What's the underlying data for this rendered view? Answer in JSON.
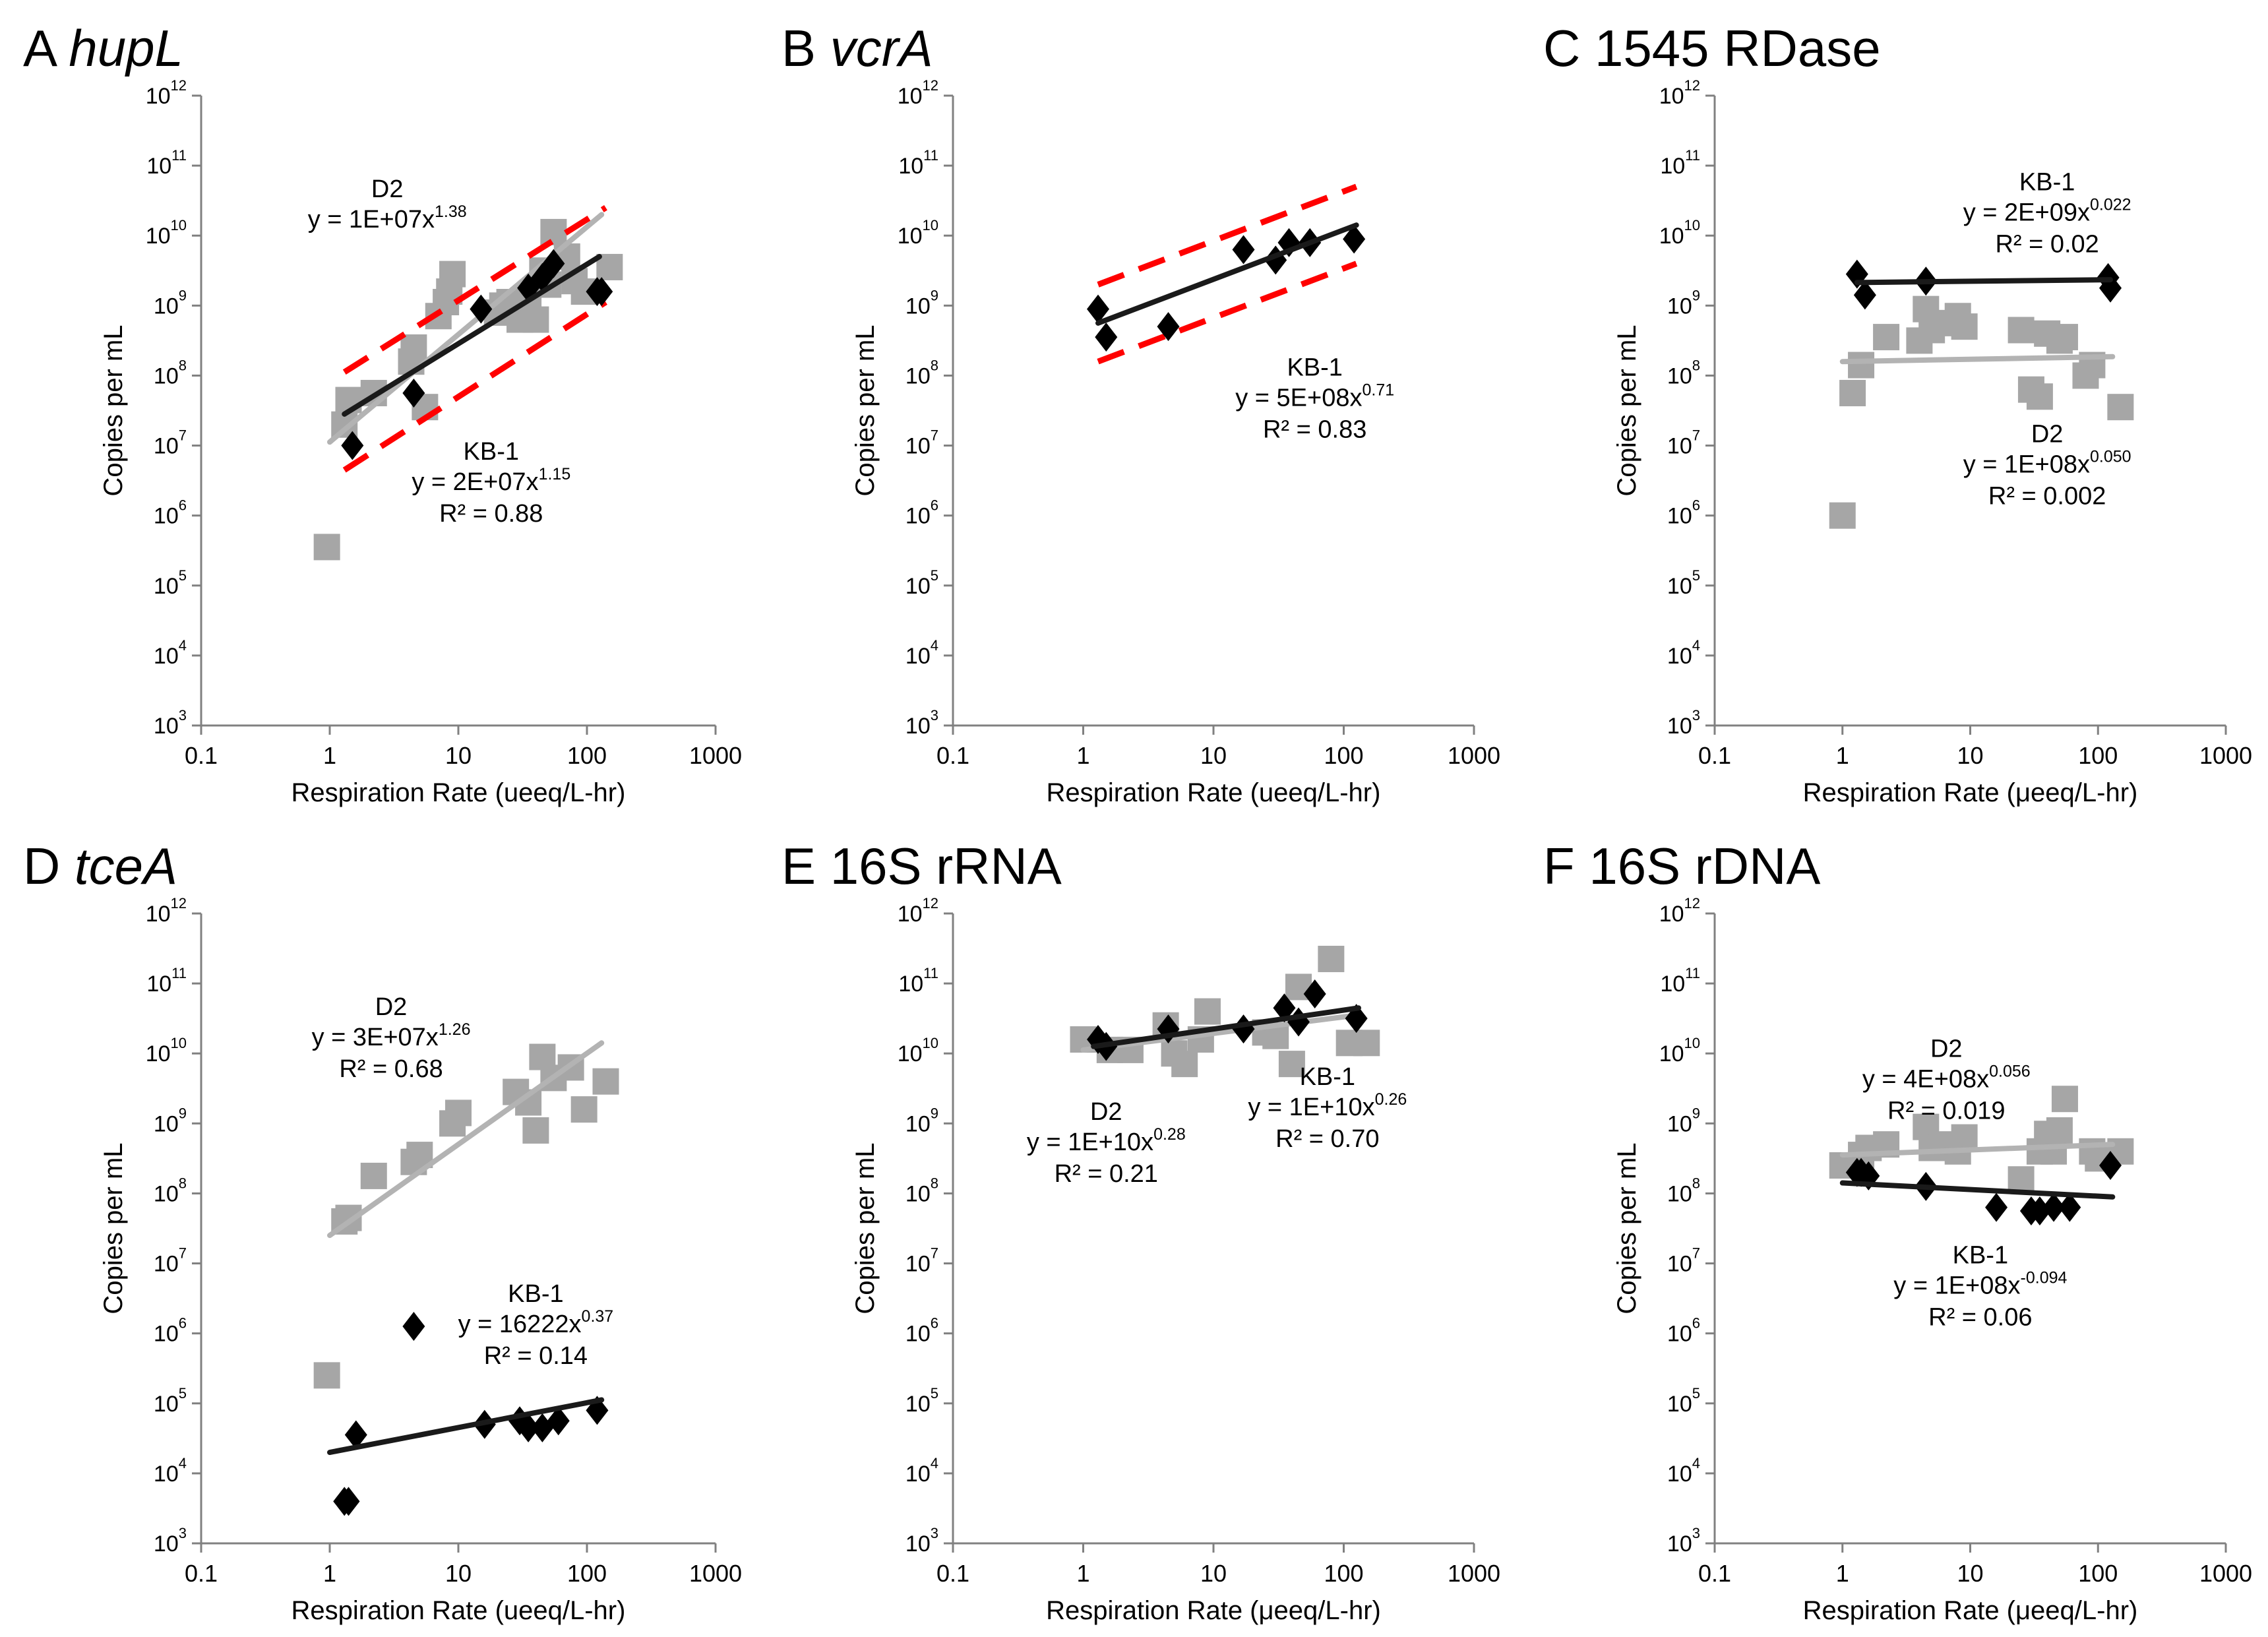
{
  "figure": {
    "colors": {
      "kb1": "#000000",
      "d2": "#a6a6a6",
      "ci": "#ff0000",
      "axis": "#808080"
    }
  },
  "chart_data": [
    {
      "id": "A",
      "letter": "A",
      "gene": "hupL",
      "gene_italic": true,
      "type": "scatter",
      "xscale": "log",
      "yscale": "log",
      "xlabel": "Respiration Rate (ueeq/L-hr)",
      "ylabel": "Copies per mL",
      "xticks": [
        "0.1",
        "1",
        "10",
        "100",
        "1000"
      ],
      "yticks": [
        3,
        4,
        5,
        6,
        7,
        8,
        9,
        10,
        11,
        12
      ],
      "xlim": [
        0.1,
        1000
      ],
      "ylim_exp": [
        3,
        12
      ],
      "series": [
        {
          "name": "D2",
          "color": "gray",
          "marker": "square",
          "x": [
            0.95,
            1.3,
            1.4,
            2.2,
            4.3,
            4.5,
            5.5,
            7,
            8,
            8.5,
            9,
            20,
            22,
            25,
            30,
            35,
            40,
            45,
            50,
            55,
            70,
            80,
            95,
            150
          ],
          "y_exp": [
            5.55,
            7.3,
            7.65,
            7.75,
            8.2,
            8.4,
            7.55,
            8.85,
            9.05,
            9.2,
            9.45,
            8.9,
            9.0,
            9.05,
            8.8,
            9.0,
            8.8,
            9.5,
            9.3,
            10.05,
            9.7,
            9.35,
            9.2,
            9.55
          ],
          "fit": {
            "x0": 1,
            "x1": 130,
            "y0_exp": 7.05,
            "y1_exp": 10.3
          }
        },
        {
          "name": "KB-1",
          "color": "black",
          "marker": "diamond",
          "x": [
            1.5,
            4.5,
            15,
            35,
            45,
            55,
            120,
            130
          ],
          "y_exp": [
            7.0,
            7.75,
            8.95,
            9.25,
            9.4,
            9.6,
            9.2,
            9.2
          ],
          "fit": {
            "x0": 1.3,
            "x1": 125,
            "y0_exp": 7.45,
            "y1_exp": 9.7
          },
          "ci": {
            "upper": {
              "x0": 1.3,
              "x1": 140,
              "y0_exp": 8.05,
              "y1_exp": 10.4
            },
            "lower": {
              "x0": 1.3,
              "x1": 140,
              "y0_exp": 6.65,
              "y1_exp": 9.05
            }
          }
        }
      ],
      "annotations": [
        {
          "lines": [
            "D2",
            "y = 1E+07x",
            "1.38"
          ],
          "x": 2.8,
          "y_exp": 10.55,
          "super": true,
          "r2": ""
        },
        {
          "lines": [
            "KB-1",
            "y = 2E+07x",
            "1.15"
          ],
          "x": 18,
          "y_exp": 6.8,
          "super": true,
          "r2": "R² = 0.88"
        }
      ]
    },
    {
      "id": "B",
      "letter": "B",
      "gene": "vcrA",
      "gene_italic": true,
      "type": "scatter",
      "xscale": "log",
      "yscale": "log",
      "xlabel": "Respiration Rate (ueeq/L-hr)",
      "ylabel": "Copies per mL",
      "xticks": [
        "0.1",
        "1",
        "10",
        "100",
        "1000"
      ],
      "yticks": [
        3,
        4,
        5,
        6,
        7,
        8,
        9,
        10,
        11,
        12
      ],
      "xlim": [
        0.1,
        1000
      ],
      "ylim_exp": [
        3,
        12
      ],
      "series": [
        {
          "name": "KB-1",
          "color": "black",
          "marker": "diamond",
          "x": [
            1.3,
            1.5,
            4.5,
            17,
            30,
            38,
            55,
            120
          ],
          "y_exp": [
            8.95,
            8.55,
            8.7,
            9.8,
            9.65,
            9.9,
            9.9,
            9.95
          ],
          "fit": {
            "x0": 1.3,
            "x1": 125,
            "y0_exp": 8.75,
            "y1_exp": 10.15
          },
          "ci": {
            "upper": {
              "x0": 1.3,
              "x1": 125,
              "y0_exp": 9.3,
              "y1_exp": 10.7
            },
            "lower": {
              "x0": 1.3,
              "x1": 125,
              "y0_exp": 8.2,
              "y1_exp": 9.6
            }
          }
        }
      ],
      "annotations": [
        {
          "lines": [
            "KB-1",
            "y = 5E+08x",
            "0.71"
          ],
          "x": 60,
          "y_exp": 8.0,
          "super": true,
          "r2": "R² = 0.83"
        }
      ]
    },
    {
      "id": "C",
      "letter": "C",
      "gene": "1545 RDase",
      "gene_italic": false,
      "type": "scatter",
      "xscale": "log",
      "yscale": "log",
      "xlabel": "Respiration Rate (μeeq/L-hr)",
      "ylabel": "Copies per mL",
      "xticks": [
        "0.1",
        "1",
        "10",
        "100",
        "1000"
      ],
      "yticks": [
        3,
        4,
        5,
        6,
        7,
        8,
        9,
        10,
        11,
        12
      ],
      "xlim": [
        0.1,
        1000
      ],
      "ylim_exp": [
        3,
        12
      ],
      "series": [
        {
          "name": "D2",
          "color": "gray",
          "marker": "square",
          "x": [
            1,
            1.2,
            1.4,
            2.2,
            4,
            4.5,
            5,
            6,
            8,
            9,
            25,
            30,
            35,
            40,
            50,
            55,
            80,
            90,
            150
          ],
          "y_exp": [
            6.0,
            7.75,
            8.15,
            8.55,
            8.5,
            8.95,
            8.65,
            8.75,
            8.85,
            8.7,
            8.65,
            7.8,
            7.7,
            8.6,
            8.5,
            8.55,
            8.0,
            8.15,
            7.55
          ],
          "fit": {
            "x0": 1,
            "x1": 130,
            "y0_exp": 8.2,
            "y1_exp": 8.27
          }
        },
        {
          "name": "KB-1",
          "color": "black",
          "marker": "diamond",
          "x": [
            1.3,
            1.5,
            4.5,
            120,
            125
          ],
          "y_exp": [
            9.45,
            9.15,
            9.35,
            9.4,
            9.25
          ],
          "fit": {
            "x0": 1.3,
            "x1": 125,
            "y0_exp": 9.33,
            "y1_exp": 9.37
          }
        }
      ],
      "annotations": [
        {
          "lines": [
            "KB-1",
            "y = 2E+09x",
            "0.022"
          ],
          "x": 40,
          "y_exp": 10.65,
          "super": true,
          "r2": "R² = 0.02"
        },
        {
          "lines": [
            "D2",
            "y = 1E+08x",
            "0.050"
          ],
          "x": 40,
          "y_exp": 7.05,
          "super": true,
          "r2": "R² = 0.002"
        }
      ]
    },
    {
      "id": "D",
      "letter": "D",
      "gene": "tceA",
      "gene_italic": true,
      "type": "scatter",
      "xscale": "log",
      "yscale": "log",
      "xlabel": "Respiration Rate (ueeq/L-hr)",
      "ylabel": "Copies per mL",
      "xticks": [
        "0.1",
        "1",
        "10",
        "100",
        "1000"
      ],
      "yticks": [
        3,
        4,
        5,
        6,
        7,
        8,
        9,
        10,
        11,
        12
      ],
      "xlim": [
        0.1,
        1000
      ],
      "ylim_exp": [
        3,
        12
      ],
      "series": [
        {
          "name": "D2",
          "color": "gray",
          "marker": "square",
          "x": [
            0.95,
            1.3,
            1.4,
            2.2,
            4.5,
            5.0,
            9,
            10,
            28,
            35,
            40,
            45,
            55,
            75,
            95,
            140
          ],
          "y_exp": [
            5.4,
            7.6,
            7.65,
            8.25,
            8.45,
            8.55,
            9.0,
            9.15,
            9.45,
            9.3,
            8.9,
            9.95,
            9.65,
            9.8,
            9.2,
            9.6
          ],
          "fit": {
            "x0": 1,
            "x1": 130,
            "y0_exp": 7.4,
            "y1_exp": 10.15
          }
        },
        {
          "name": "KB-1",
          "color": "black",
          "marker": "diamond",
          "x": [
            1.3,
            1.4,
            1.6,
            4.5,
            16,
            30,
            35,
            45,
            60,
            120
          ],
          "y_exp": [
            3.6,
            3.6,
            4.55,
            6.1,
            4.7,
            4.75,
            4.65,
            4.65,
            4.75,
            4.9
          ],
          "fit": {
            "x0": 1.0,
            "x1": 130,
            "y0_exp": 4.3,
            "y1_exp": 5.05
          }
        }
      ],
      "annotations": [
        {
          "lines": [
            "D2",
            "y = 3E+07x",
            "1.26"
          ],
          "x": 3.0,
          "y_exp": 10.55,
          "super": true,
          "r2": "R² = 0.68"
        },
        {
          "lines": [
            "KB-1",
            "y = 16222x",
            "0.37"
          ],
          "x": 40,
          "y_exp": 6.45,
          "super": true,
          "r2": "R² = 0.14"
        }
      ]
    },
    {
      "id": "E",
      "letter": "E",
      "gene": "16S rRNA",
      "gene_italic": false,
      "type": "scatter",
      "xscale": "log",
      "yscale": "log",
      "xlabel": "Respiration Rate (μeeq/L-hr)",
      "ylabel": "Copies per mL",
      "xticks": [
        "0.1",
        "1",
        "10",
        "100",
        "1000"
      ],
      "yticks": [
        3,
        4,
        5,
        6,
        7,
        8,
        9,
        10,
        11,
        12
      ],
      "xlim": [
        0.1,
        1000
      ],
      "ylim_exp": [
        3,
        12
      ],
      "series": [
        {
          "name": "D2",
          "color": "gray",
          "marker": "square",
          "x": [
            1,
            1.6,
            2.3,
            4.3,
            5,
            6,
            8,
            9,
            25,
            30,
            40,
            45,
            80,
            110,
            150
          ],
          "y_exp": [
            10.2,
            10.05,
            10.05,
            10.4,
            10.0,
            9.85,
            10.2,
            10.6,
            10.3,
            10.25,
            9.85,
            10.95,
            11.35,
            10.15,
            10.15
          ],
          "fit": {
            "x0": 1,
            "x1": 130,
            "y0_exp": 10.05,
            "y1_exp": 10.55
          }
        },
        {
          "name": "KB-1",
          "color": "black",
          "marker": "diamond",
          "x": [
            1.3,
            1.5,
            4.5,
            17,
            35,
            45,
            60,
            125
          ],
          "y_exp": [
            10.2,
            10.1,
            10.35,
            10.35,
            10.65,
            10.45,
            10.85,
            10.5
          ],
          "fit": {
            "x0": 1.2,
            "x1": 130,
            "y0_exp": 10.1,
            "y1_exp": 10.65
          }
        }
      ],
      "annotations": [
        {
          "lines": [
            "D2",
            "y = 1E+10x",
            "0.28"
          ],
          "x": 1.5,
          "y_exp": 9.05,
          "super": true,
          "r2": "R² = 0.21"
        },
        {
          "lines": [
            "KB-1",
            "y = 1E+10x",
            "0.26"
          ],
          "x": 75,
          "y_exp": 9.55,
          "super": true,
          "r2": "R² = 0.70"
        }
      ]
    },
    {
      "id": "F",
      "letter": "F",
      "gene": "16S rDNA",
      "gene_italic": false,
      "type": "scatter",
      "xscale": "log",
      "yscale": "log",
      "xlabel": "Respiration Rate (μeeq/L-hr)",
      "ylabel": "Copies per mL",
      "xticks": [
        "0.1",
        "1",
        "10",
        "100",
        "1000"
      ],
      "yticks": [
        3,
        4,
        5,
        6,
        7,
        8,
        9,
        10,
        11,
        12
      ],
      "xlim": [
        0.1,
        1000
      ],
      "ylim_exp": [
        3,
        12
      ],
      "series": [
        {
          "name": "D2",
          "color": "gray",
          "marker": "square",
          "x": [
            1,
            1.4,
            1.6,
            2.2,
            4.5,
            5,
            6,
            8,
            9,
            25,
            35,
            40,
            45,
            50,
            55,
            90,
            100,
            150
          ],
          "y_exp": [
            8.4,
            8.55,
            8.65,
            8.7,
            8.95,
            8.65,
            8.7,
            8.6,
            8.8,
            8.2,
            8.6,
            8.85,
            8.6,
            8.9,
            9.35,
            8.6,
            8.5,
            8.6
          ],
          "fit": {
            "x0": 1,
            "x1": 130,
            "y0_exp": 8.55,
            "y1_exp": 8.7
          }
        },
        {
          "name": "KB-1",
          "color": "black",
          "marker": "diamond",
          "x": [
            1.3,
            1.4,
            1.6,
            4.5,
            16,
            30,
            35,
            45,
            60,
            125
          ],
          "y_exp": [
            8.3,
            8.3,
            8.25,
            8.1,
            7.8,
            7.75,
            7.75,
            7.8,
            7.8,
            8.4
          ],
          "fit": {
            "x0": 1.0,
            "x1": 130,
            "y0_exp": 8.15,
            "y1_exp": 7.95
          }
        }
      ],
      "annotations": [
        {
          "lines": [
            "D2",
            "y = 4E+08x",
            "0.056"
          ],
          "x": 6.5,
          "y_exp": 9.95,
          "super": true,
          "r2": "R² = 0.019"
        },
        {
          "lines": [
            "KB-1",
            "y = 1E+08x",
            "-0.094"
          ],
          "x": 12,
          "y_exp": 7.0,
          "super": true,
          "r2": "R² = 0.06"
        }
      ]
    }
  ]
}
